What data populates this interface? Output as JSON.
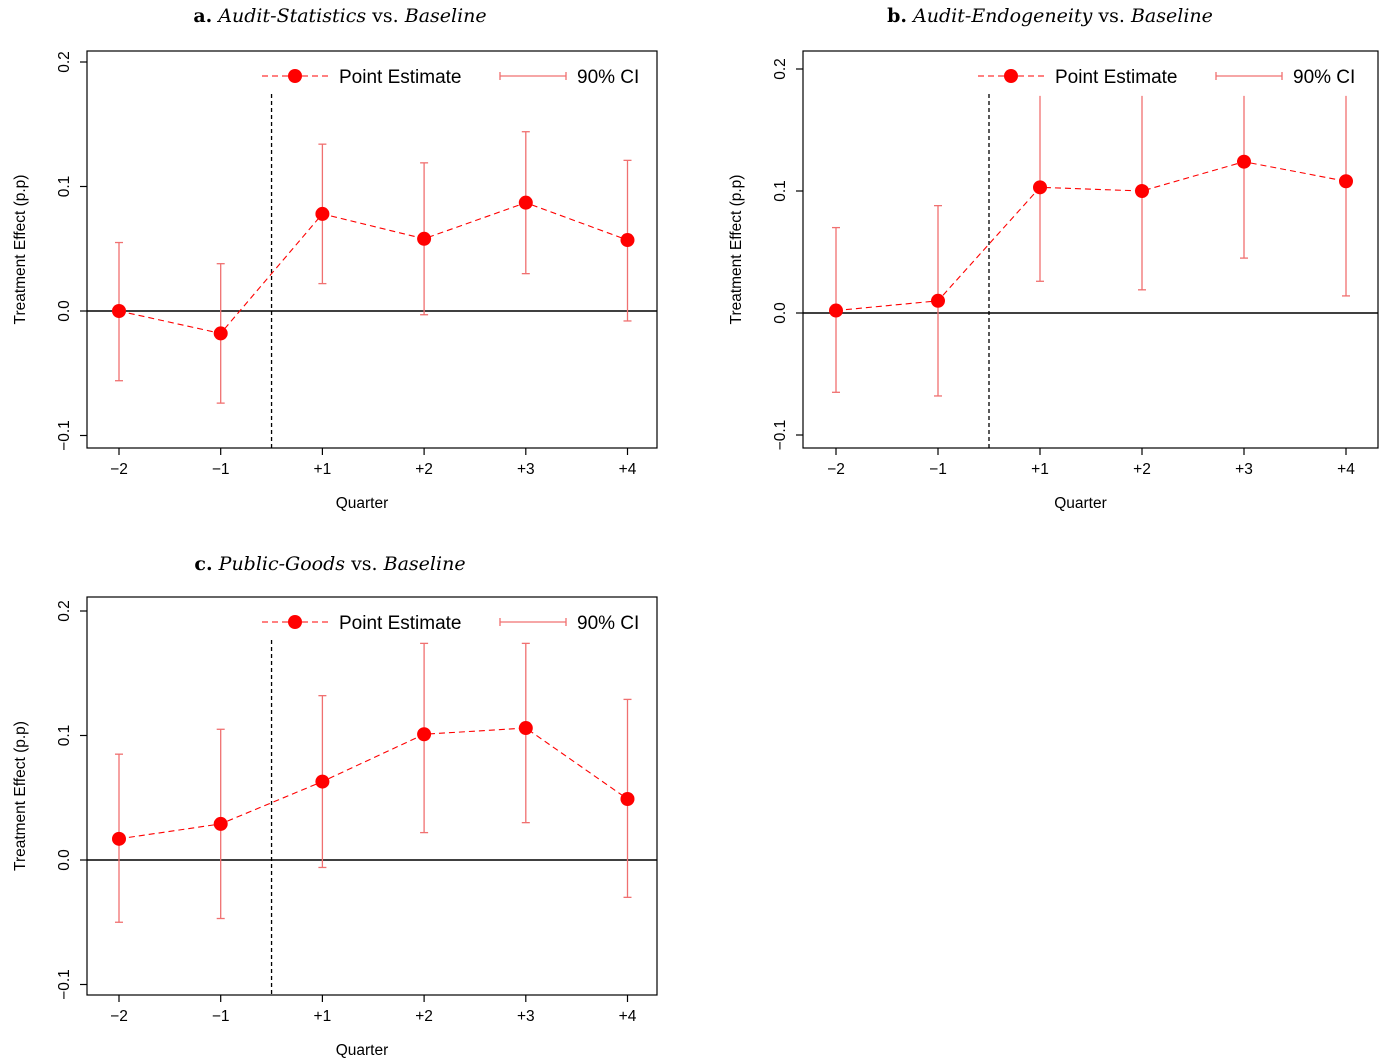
{
  "chart_data": [
    {
      "type": "line",
      "panel_label": "a.",
      "title_parts": [
        {
          "text": "Audit-Statistics",
          "italic": true
        },
        {
          "text": " vs. ",
          "italic": false
        },
        {
          "text": "Baseline",
          "italic": true
        }
      ],
      "xlabel": "Quarter",
      "ylabel": "Treatment Effect (p.p)",
      "categories": [
        "−2",
        "−1",
        "+1",
        "+2",
        "+3",
        "+4"
      ],
      "yticks": [
        "−0.1",
        "0.0",
        "0.1",
        "0.2"
      ],
      "ylim": [
        -0.1,
        0.2
      ],
      "legend": {
        "point": "Point Estimate",
        "ci": "90% CI",
        "position": "top-right"
      },
      "series": [
        {
          "values": [
            0.0,
            -0.018,
            0.078,
            0.058,
            0.087,
            0.057
          ],
          "ci_low": [
            -0.056,
            -0.074,
            0.022,
            -0.003,
            0.03,
            -0.008
          ],
          "ci_high": [
            0.055,
            0.038,
            0.134,
            0.119,
            0.144,
            0.121
          ]
        }
      ]
    },
    {
      "type": "line",
      "panel_label": "b.",
      "title_parts": [
        {
          "text": "Audit-Endogeneity",
          "italic": true
        },
        {
          "text": " vs. ",
          "italic": false
        },
        {
          "text": "Baseline",
          "italic": true
        }
      ],
      "xlabel": "Quarter",
      "ylabel": "Treatment Effect (p.p)",
      "categories": [
        "−2",
        "−1",
        "+1",
        "+2",
        "+3",
        "+4"
      ],
      "yticks": [
        "−0.1",
        "0.0",
        "0.1",
        "0.2"
      ],
      "ylim": [
        -0.1,
        0.2
      ],
      "legend": {
        "point": "Point Estimate",
        "ci": "90% CI",
        "position": "top-right"
      },
      "series": [
        {
          "values": [
            0.002,
            0.01,
            0.103,
            0.1,
            0.124,
            0.108
          ],
          "ci_low": [
            -0.065,
            -0.068,
            0.026,
            0.019,
            0.045,
            0.014
          ],
          "ci_high": [
            0.07,
            0.088,
            0.178,
            0.178,
            0.178,
            0.178
          ]
        }
      ]
    },
    {
      "type": "line",
      "panel_label": "c.",
      "title_parts": [
        {
          "text": "Public-Goods",
          "italic": true
        },
        {
          "text": " vs. ",
          "italic": false
        },
        {
          "text": "Baseline",
          "italic": true
        }
      ],
      "xlabel": "Quarter",
      "ylabel": "Treatment Effect (p.p)",
      "categories": [
        "−2",
        "−1",
        "+1",
        "+2",
        "+3",
        "+4"
      ],
      "yticks": [
        "−0.1",
        "0.0",
        "0.1",
        "0.2"
      ],
      "ylim": [
        -0.1,
        0.2
      ],
      "legend": {
        "point": "Point Estimate",
        "ci": "90% CI",
        "position": "top-right"
      },
      "series": [
        {
          "values": [
            0.017,
            0.029,
            0.063,
            0.101,
            0.106,
            0.049
          ],
          "ci_low": [
            -0.05,
            -0.047,
            -0.006,
            0.022,
            0.03,
            -0.03
          ],
          "ci_high": [
            0.085,
            0.105,
            0.132,
            0.174,
            0.174,
            0.129
          ]
        }
      ]
    }
  ],
  "colors": {
    "point": "#ff0000",
    "ci": "#f07070",
    "axis": "#000000"
  }
}
